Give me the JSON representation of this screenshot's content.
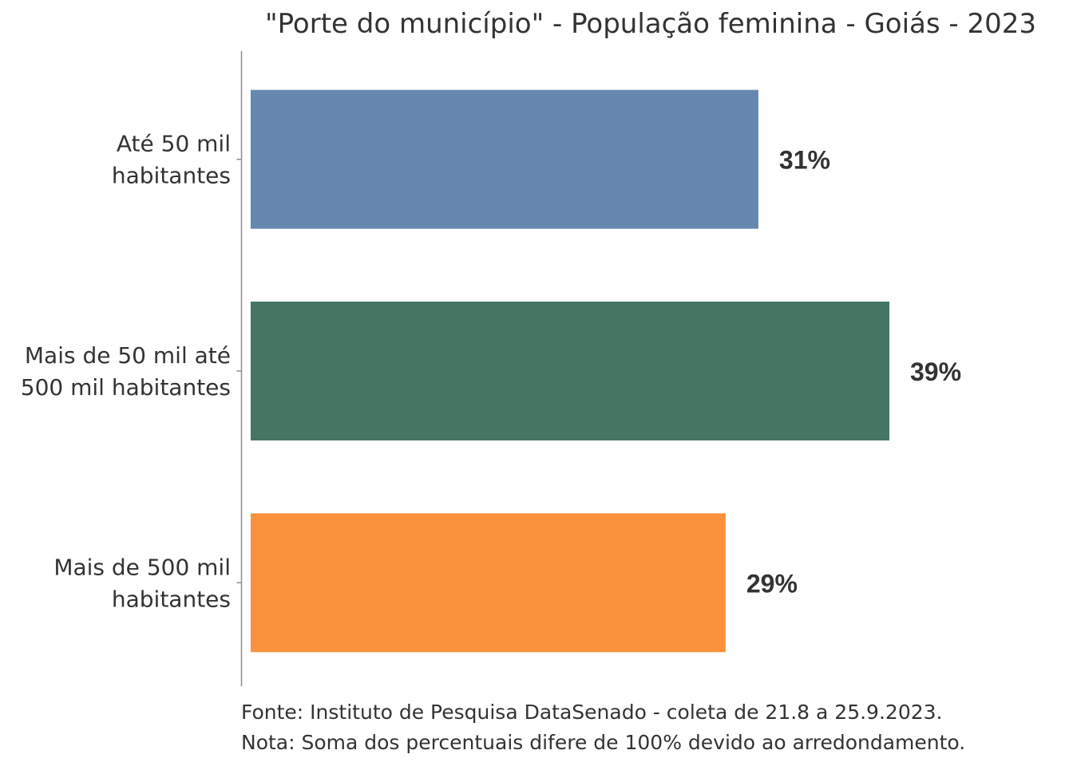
{
  "chart_data": {
    "type": "bar",
    "orientation": "horizontal",
    "title": "\"Porte do município\" - População feminina - Goiás - 2023",
    "categories": [
      [
        "Até 50 mil",
        "habitantes"
      ],
      [
        "Mais de 50 mil até",
        "500 mil habitantes"
      ],
      [
        "Mais de 500 mil",
        "habitantes"
      ]
    ],
    "values": [
      31,
      39,
      29
    ],
    "value_labels": [
      "31%",
      "39%",
      "29%"
    ],
    "colors": [
      "#6587b0",
      "#457664",
      "#f9913d"
    ],
    "xlim": [
      0,
      39
    ],
    "xlabel": "",
    "ylabel": "",
    "grid": false
  },
  "footer": {
    "source": "Fonte: Instituto de Pesquisa DataSenado - coleta de 21.8 a 25.9.2023.",
    "note": "Nota: Soma dos percentuais difere de 100% devido ao arredondamento."
  }
}
